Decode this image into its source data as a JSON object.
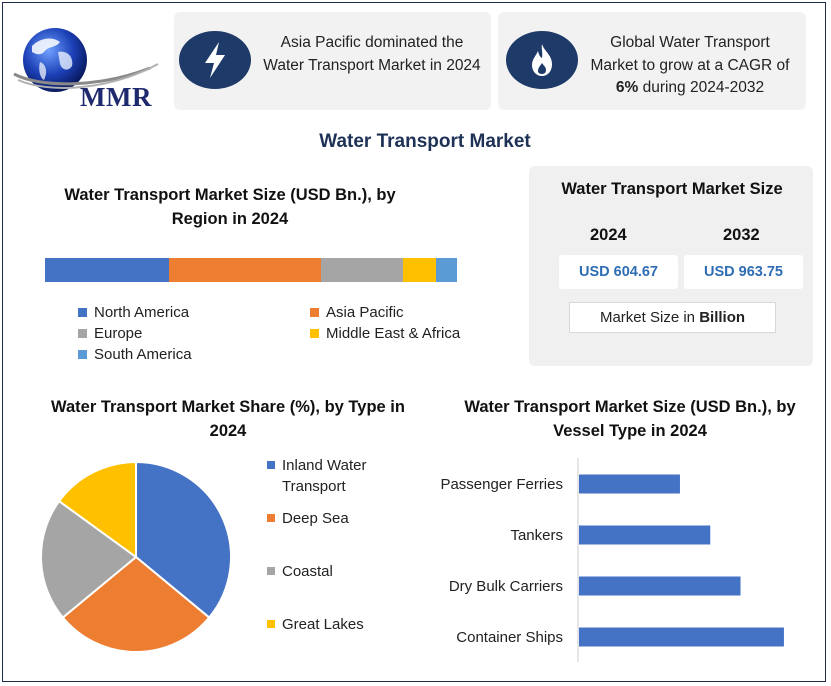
{
  "logo": {
    "text": "MMR"
  },
  "highlights": [
    {
      "text": "Asia Pacific dominated the Water Transport Market in 2024",
      "icon": "lightning-icon"
    },
    {
      "text_before": "Global Water Transport Market to grow at a CAGR of ",
      "text_bold": "6%",
      "text_after": " during 2024-2032",
      "icon": "flame-icon"
    }
  ],
  "main_title": "Water Transport Market",
  "market_size": {
    "title": "Water Transport Market Size",
    "year_start": "2024",
    "year_end": "2032",
    "value_start": "USD 604.67",
    "value_end": "USD 963.75",
    "unit_prefix": "Market Size in ",
    "unit_bold": "Billion"
  },
  "colors": {
    "blue": "#4472C4",
    "orange": "#ED7D31",
    "gray": "#A5A5A5",
    "yellow": "#FFC000",
    "light_blue": "#5B9BD5",
    "navy": "#1E3A68"
  },
  "chart_data": [
    {
      "type": "bar",
      "orientation": "horizontal-stacked",
      "title": "Water Transport Market Size (USD Bn.), by Region in 2024",
      "series": [
        {
          "name": "North America",
          "value": 30,
          "color": "#4472C4"
        },
        {
          "name": "Asia Pacific",
          "value": 37,
          "color": "#ED7D31"
        },
        {
          "name": "Europe",
          "value": 20,
          "color": "#A5A5A5"
        },
        {
          "name": "Middle East & Africa",
          "value": 8,
          "color": "#FFC000"
        },
        {
          "name": "South America",
          "value": 5,
          "color": "#5B9BD5"
        }
      ]
    },
    {
      "type": "pie",
      "title": "Water Transport Market Share (%), by Type in 2024",
      "slices": [
        {
          "label": "Inland Water Transport",
          "value": 36,
          "color": "#4472C4"
        },
        {
          "label": "Deep Sea",
          "value": 28,
          "color": "#ED7D31"
        },
        {
          "label": "Coastal",
          "value": 21,
          "color": "#A5A5A5"
        },
        {
          "label": "Great Lakes",
          "value": 15,
          "color": "#FFC000"
        }
      ]
    },
    {
      "type": "bar",
      "orientation": "horizontal",
      "title": "Water Transport Market Size (USD Bn.), by Vessel Type in 2024",
      "categories": [
        "Passenger Ferries",
        "Tankers",
        "Dry Bulk Carriers",
        "Container Ships"
      ],
      "values": [
        100,
        130,
        160,
        203
      ],
      "color": "#4472C4"
    }
  ]
}
